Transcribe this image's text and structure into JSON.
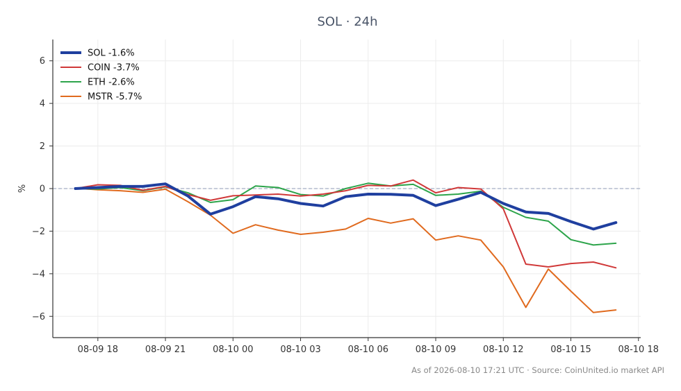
{
  "chart_data": {
    "type": "line",
    "title": "SOL · 24h",
    "xlabel": "",
    "ylabel": "%",
    "x": [
      "08-09 17",
      "08-09 18",
      "08-09 19",
      "08-09 20",
      "08-09 21",
      "08-09 22",
      "08-09 23",
      "08-10 00",
      "08-10 01",
      "08-10 02",
      "08-10 03",
      "08-10 04",
      "08-10 05",
      "08-10 06",
      "08-10 07",
      "08-10 08",
      "08-10 09",
      "08-10 10",
      "08-10 11",
      "08-10 12",
      "08-10 13",
      "08-10 14",
      "08-10 15",
      "08-10 16",
      "08-10 17"
    ],
    "x_ticks": [
      "08-09 18",
      "08-09 21",
      "08-10 00",
      "08-10 03",
      "08-10 06",
      "08-10 09",
      "08-10 12",
      "08-10 15",
      "08-10 18"
    ],
    "y_ticks": [
      -6,
      -4,
      -2,
      0,
      2,
      4,
      6
    ],
    "ylim": [
      -7,
      7
    ],
    "xlim": [
      "08-09 16",
      "08-10 18.1"
    ],
    "zero_line": true,
    "grid": true,
    "legend_position": "top-left",
    "series": [
      {
        "name": "SOL -1.6%",
        "color": "#1f3f9f",
        "width": 4,
        "values": [
          0.0,
          0.05,
          0.1,
          0.1,
          0.22,
          -0.35,
          -1.2,
          -0.85,
          -0.38,
          -0.48,
          -0.7,
          -0.82,
          -0.38,
          -0.26,
          -0.27,
          -0.32,
          -0.8,
          -0.5,
          -0.18,
          -0.7,
          -1.1,
          -1.17,
          -1.55,
          -1.9,
          -1.6
        ]
      },
      {
        "name": "COIN -3.7%",
        "color": "#d03838",
        "width": 2,
        "values": [
          0.0,
          0.18,
          0.15,
          -0.08,
          0.1,
          -0.28,
          -0.55,
          -0.34,
          -0.3,
          -0.26,
          -0.35,
          -0.26,
          -0.1,
          0.15,
          0.12,
          0.4,
          -0.2,
          0.05,
          -0.02,
          -0.95,
          -3.55,
          -3.68,
          -3.52,
          -3.45,
          -3.72
        ]
      },
      {
        "name": "ETH -2.6%",
        "color": "#2ca44a",
        "width": 2,
        "values": [
          0.0,
          -0.02,
          0.05,
          -0.1,
          0.08,
          -0.2,
          -0.65,
          -0.52,
          0.12,
          0.05,
          -0.28,
          -0.35,
          0.0,
          0.25,
          0.12,
          0.2,
          -0.32,
          -0.26,
          -0.12,
          -0.88,
          -1.35,
          -1.53,
          -2.4,
          -2.65,
          -2.57
        ]
      },
      {
        "name": "MSTR -5.7%",
        "color": "#e06a1e",
        "width": 2,
        "values": [
          0.02,
          -0.06,
          -0.1,
          -0.18,
          -0.03,
          -0.62,
          -1.25,
          -2.1,
          -1.7,
          -1.95,
          -2.15,
          -2.05,
          -1.9,
          -1.4,
          -1.62,
          -1.42,
          -2.42,
          -2.22,
          -2.42,
          -3.68,
          -5.58,
          -3.78,
          -4.82,
          -5.82,
          -5.7
        ]
      }
    ],
    "footer": "As of 2026-08-10 17:21 UTC · Source: CoinUnited.io market API"
  }
}
